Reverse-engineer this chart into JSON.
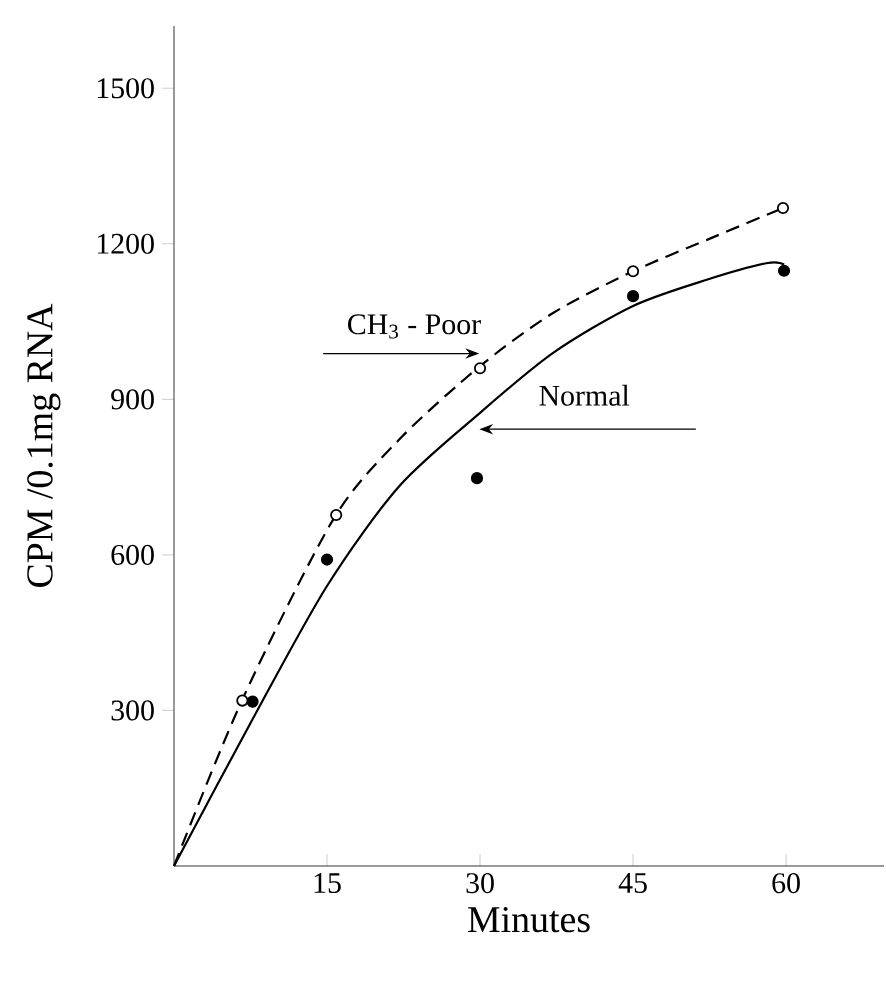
{
  "chart_data": {
    "type": "scatter",
    "xlabel": "Minutes",
    "ylabel": "CPM /0.1mg RNA",
    "xlim": [
      0,
      69.6
    ],
    "ylim": [
      0,
      1620
    ],
    "xticks": [
      15,
      30,
      45,
      60
    ],
    "yticks": [
      300,
      600,
      900,
      1200,
      1500
    ],
    "series": [
      {
        "type": "scatter",
        "marker": "circle",
        "color": "#000000",
        "x": [
          7.7,
          15,
          29.7,
          45,
          59.8
        ],
        "values": [
          317,
          591,
          748,
          1099,
          1148
        ]
      },
      {
        "type": "scatter",
        "marker": "circle",
        "color": "#000000",
        "x": [
          6.7,
          15.9,
          30,
          45,
          59.7
        ],
        "values": [
          319,
          677,
          960,
          1147,
          1269
        ]
      },
      {
        "type": "line",
        "name": "Normal",
        "marker": "none",
        "line_style": "solid",
        "color": "#000000",
        "x": [
          0,
          7.7,
          15,
          22.1,
          30,
          37.2,
          45,
          52.3,
          58.2,
          59.8
        ],
        "values": [
          0,
          283,
          540,
          733,
          874,
          990,
          1080,
          1131,
          1163,
          1160
        ]
      },
      {
        "type": "line",
        "name": "CH$_{3}$ - Poor",
        "marker": "none",
        "line_style": "dashed",
        "color": "#000000",
        "x": [
          0,
          6.7,
          15.6,
          22.1,
          30,
          37.2,
          45,
          52.3,
          59.7
        ],
        "values": [
          0,
          321,
          668,
          823,
          964,
          1067,
          1147,
          1208,
          1269
        ]
      }
    ]
  }
}
